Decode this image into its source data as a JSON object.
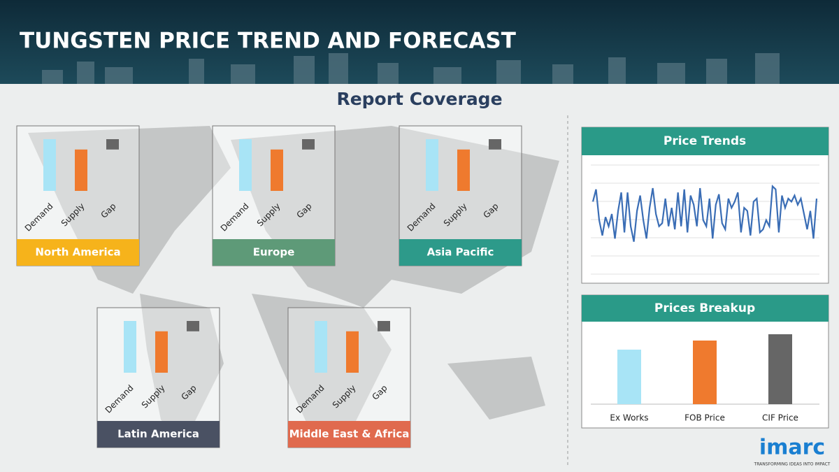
{
  "header": {
    "title": "TUNGSTEN PRICE TREND AND FORECAST"
  },
  "section_title": "Report Coverage",
  "bar_colors": [
    "#a8e4f6",
    "#ef7a2e",
    "#666666"
  ],
  "regions": [
    {
      "name": "North America",
      "color": "#f6b31b",
      "categories": [
        "Demand",
        "Supply",
        "Gap"
      ],
      "values": [
        100,
        80,
        20
      ]
    },
    {
      "name": "Europe",
      "color": "#5e9a78",
      "categories": [
        "Demand",
        "Supply",
        "Gap"
      ],
      "values": [
        100,
        80,
        20
      ]
    },
    {
      "name": "Asia Pacific",
      "color": "#2d9a8a",
      "categories": [
        "Demand",
        "Supply",
        "Gap"
      ],
      "values": [
        100,
        80,
        20
      ]
    },
    {
      "name": "Latin America",
      "color": "#4a5163",
      "categories": [
        "Demand",
        "Supply",
        "Gap"
      ],
      "values": [
        100,
        80,
        20
      ]
    },
    {
      "name": "Middle East & Africa",
      "color": "#e06a4e",
      "categories": [
        "Demand",
        "Supply",
        "Gap"
      ],
      "values": [
        100,
        80,
        20
      ]
    }
  ],
  "price_trends": {
    "type": "line",
    "title": "Price Trends",
    "color": "#3a6db5",
    "ylim": [
      0,
      100
    ],
    "values": [
      70,
      90,
      40,
      15,
      45,
      30,
      50,
      10,
      55,
      85,
      20,
      85,
      30,
      5,
      55,
      80,
      40,
      10,
      60,
      92,
      50,
      30,
      35,
      75,
      30,
      60,
      25,
      85,
      30,
      90,
      20,
      80,
      65,
      30,
      92,
      40,
      30,
      75,
      10,
      65,
      82,
      35,
      25,
      75,
      60,
      70,
      85,
      20,
      60,
      55,
      15,
      70,
      75,
      20,
      25,
      40,
      30,
      95,
      90,
      20,
      80,
      60,
      75,
      70,
      80,
      65,
      75,
      50,
      25,
      55,
      10,
      75
    ]
  },
  "prices_breakup": {
    "type": "bar",
    "title": "Prices Breakup",
    "ylim": [
      0,
      100
    ],
    "categories": [
      "Ex Works",
      "FOB Price",
      "CIF Price"
    ],
    "values": [
      78,
      91,
      100
    ],
    "colors": [
      "#a8e4f6",
      "#ef7a2e",
      "#666666"
    ]
  },
  "logo": {
    "name": "imarc",
    "tagline": "TRANSFORMING IDEAS INTO IMPACT"
  }
}
